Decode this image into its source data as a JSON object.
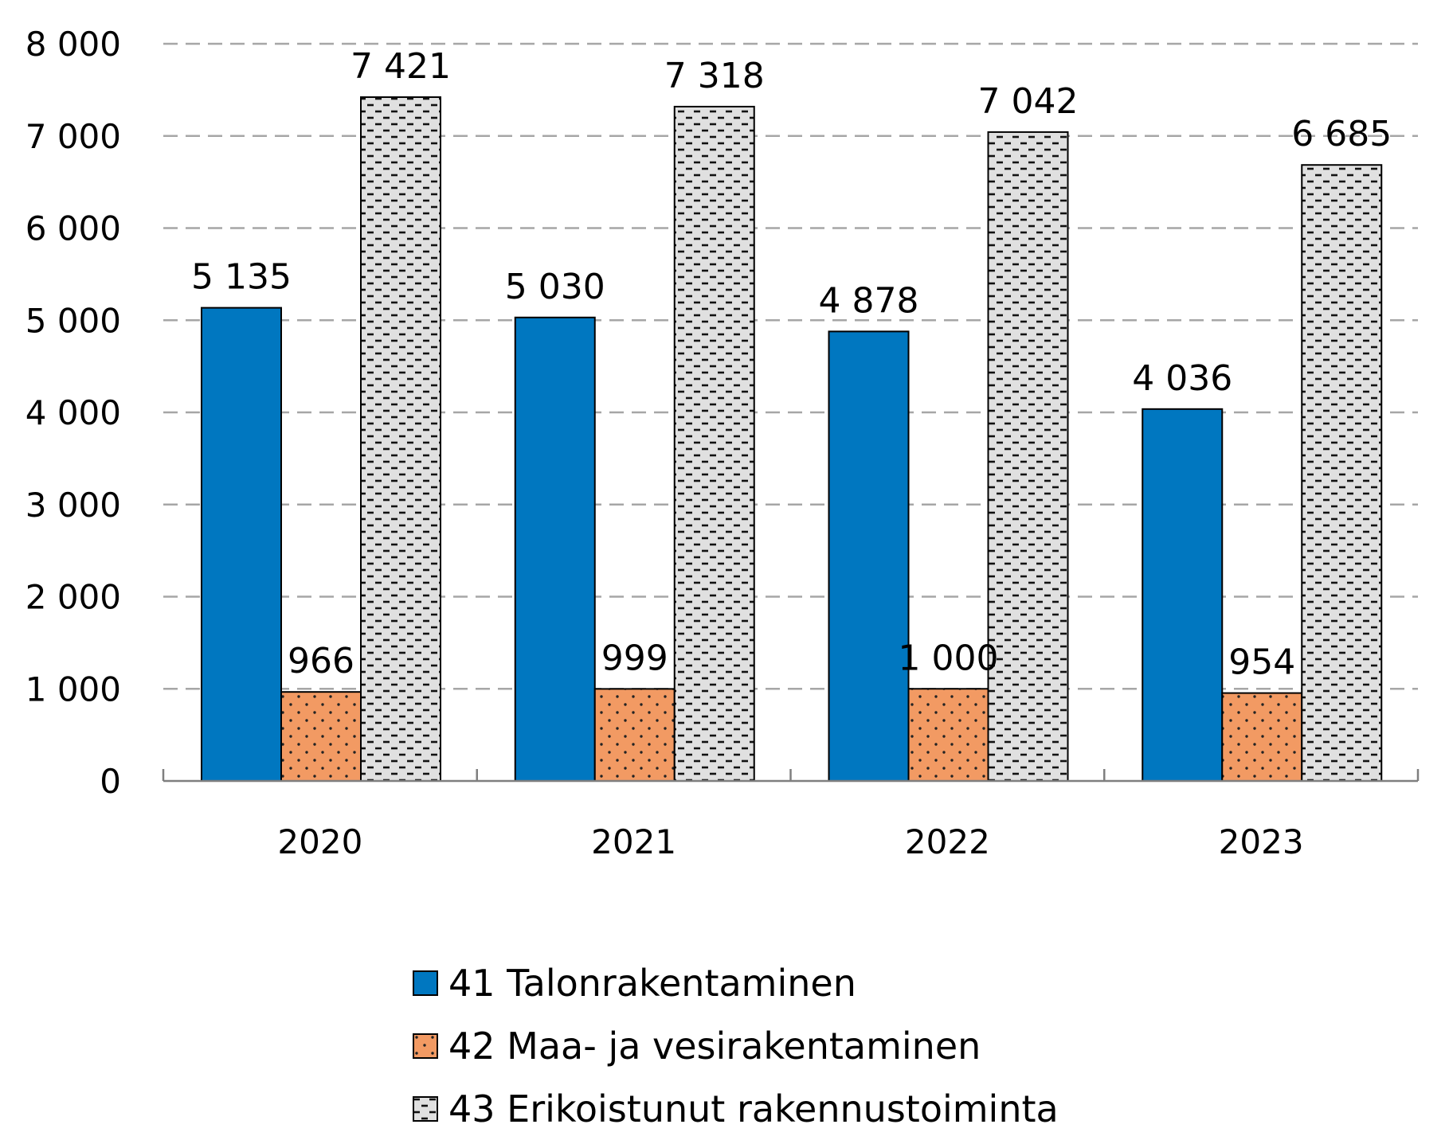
{
  "chart_data": {
    "type": "bar",
    "categories": [
      "2020",
      "2021",
      "2022",
      "2023"
    ],
    "series": [
      {
        "name": "41 Talonrakentaminen",
        "values": [
          5135,
          5030,
          4878,
          4036
        ],
        "labels": [
          "5 135",
          "5 030",
          "4 878",
          "4 036"
        ],
        "color": "#0077c0",
        "pattern": "solid"
      },
      {
        "name": "42 Maa- ja vesirakentaminen",
        "values": [
          966,
          999,
          1000,
          954
        ],
        "labels": [
          "966",
          "999",
          "1 000",
          "954"
        ],
        "color": "#f29a63",
        "pattern": "dots"
      },
      {
        "name": "43 Erikoistunut rakennustoiminta",
        "values": [
          7421,
          7318,
          7042,
          6685
        ],
        "labels": [
          "7 421",
          "7 318",
          "7 042",
          "6 685"
        ],
        "color": "#e0e0e0",
        "pattern": "dashes"
      }
    ],
    "ylim": [
      0,
      8000
    ],
    "yticks": [
      {
        "value": 0,
        "label": "0"
      },
      {
        "value": 1000,
        "label": "1 000"
      },
      {
        "value": 2000,
        "label": "2 000"
      },
      {
        "value": 3000,
        "label": "3 000"
      },
      {
        "value": 4000,
        "label": "4 000"
      },
      {
        "value": 5000,
        "label": "5 000"
      },
      {
        "value": 6000,
        "label": "6 000"
      },
      {
        "value": 7000,
        "label": "7 000"
      },
      {
        "value": 8000,
        "label": "8 000"
      }
    ],
    "grid": "dashed horizontal",
    "legend_position": "bottom"
  }
}
